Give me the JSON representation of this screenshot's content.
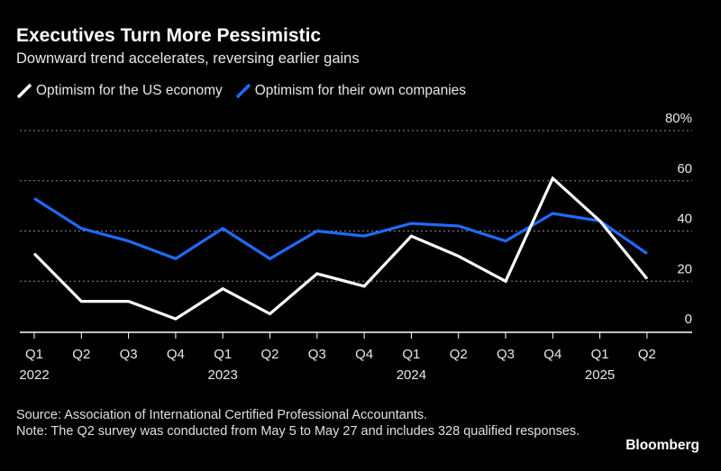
{
  "header": {
    "title": "Executives Turn More Pessimistic",
    "subtitle": "Downward trend accelerates, reversing earlier gains"
  },
  "legend": [
    {
      "label": "Optimism for the US economy",
      "color": "#ffffff"
    },
    {
      "label": "Optimism for their own companies",
      "color": "#1f6bff"
    }
  ],
  "chart_data": {
    "type": "line",
    "categories": [
      "Q1 2022",
      "Q2 2022",
      "Q3 2022",
      "Q4 2022",
      "Q1 2023",
      "Q2 2023",
      "Q3 2023",
      "Q4 2023",
      "Q1 2024",
      "Q2 2024",
      "Q3 2024",
      "Q4 2024",
      "Q1 2025",
      "Q2 2025"
    ],
    "x_tick_labels": [
      "Q1",
      "Q2",
      "Q3",
      "Q4",
      "Q1",
      "Q2",
      "Q3",
      "Q4",
      "Q1",
      "Q2",
      "Q3",
      "Q4",
      "Q1",
      "Q2"
    ],
    "x_year_labels": [
      {
        "index": 0,
        "label": "2022"
      },
      {
        "index": 4,
        "label": "2023"
      },
      {
        "index": 8,
        "label": "2024"
      },
      {
        "index": 12,
        "label": "2025"
      }
    ],
    "series": [
      {
        "name": "Optimism for the US economy",
        "color": "#ffffff",
        "values": [
          31,
          12,
          12,
          5,
          17,
          7,
          23,
          18,
          38,
          30,
          20,
          61,
          44,
          21
        ]
      },
      {
        "name": "Optimism for their own companies",
        "color": "#1f6bff",
        "values": [
          53,
          41,
          36,
          29,
          41,
          29,
          40,
          38,
          43,
          42,
          36,
          47,
          44,
          31
        ]
      }
    ],
    "ylim": [
      0,
      80
    ],
    "y_ticks": [
      0,
      20,
      40,
      60,
      80
    ],
    "y_tick_labels": [
      "0",
      "20",
      "40",
      "60",
      "80%"
    ],
    "y_axis_position": "right",
    "grid": true
  },
  "footer": {
    "source": "Source: Association of International Certified Professional Accountants.",
    "note": "Note: The Q2 survey was conducted from May 5 to May 27 and includes 328 qualified responses."
  },
  "brand": "Bloomberg"
}
